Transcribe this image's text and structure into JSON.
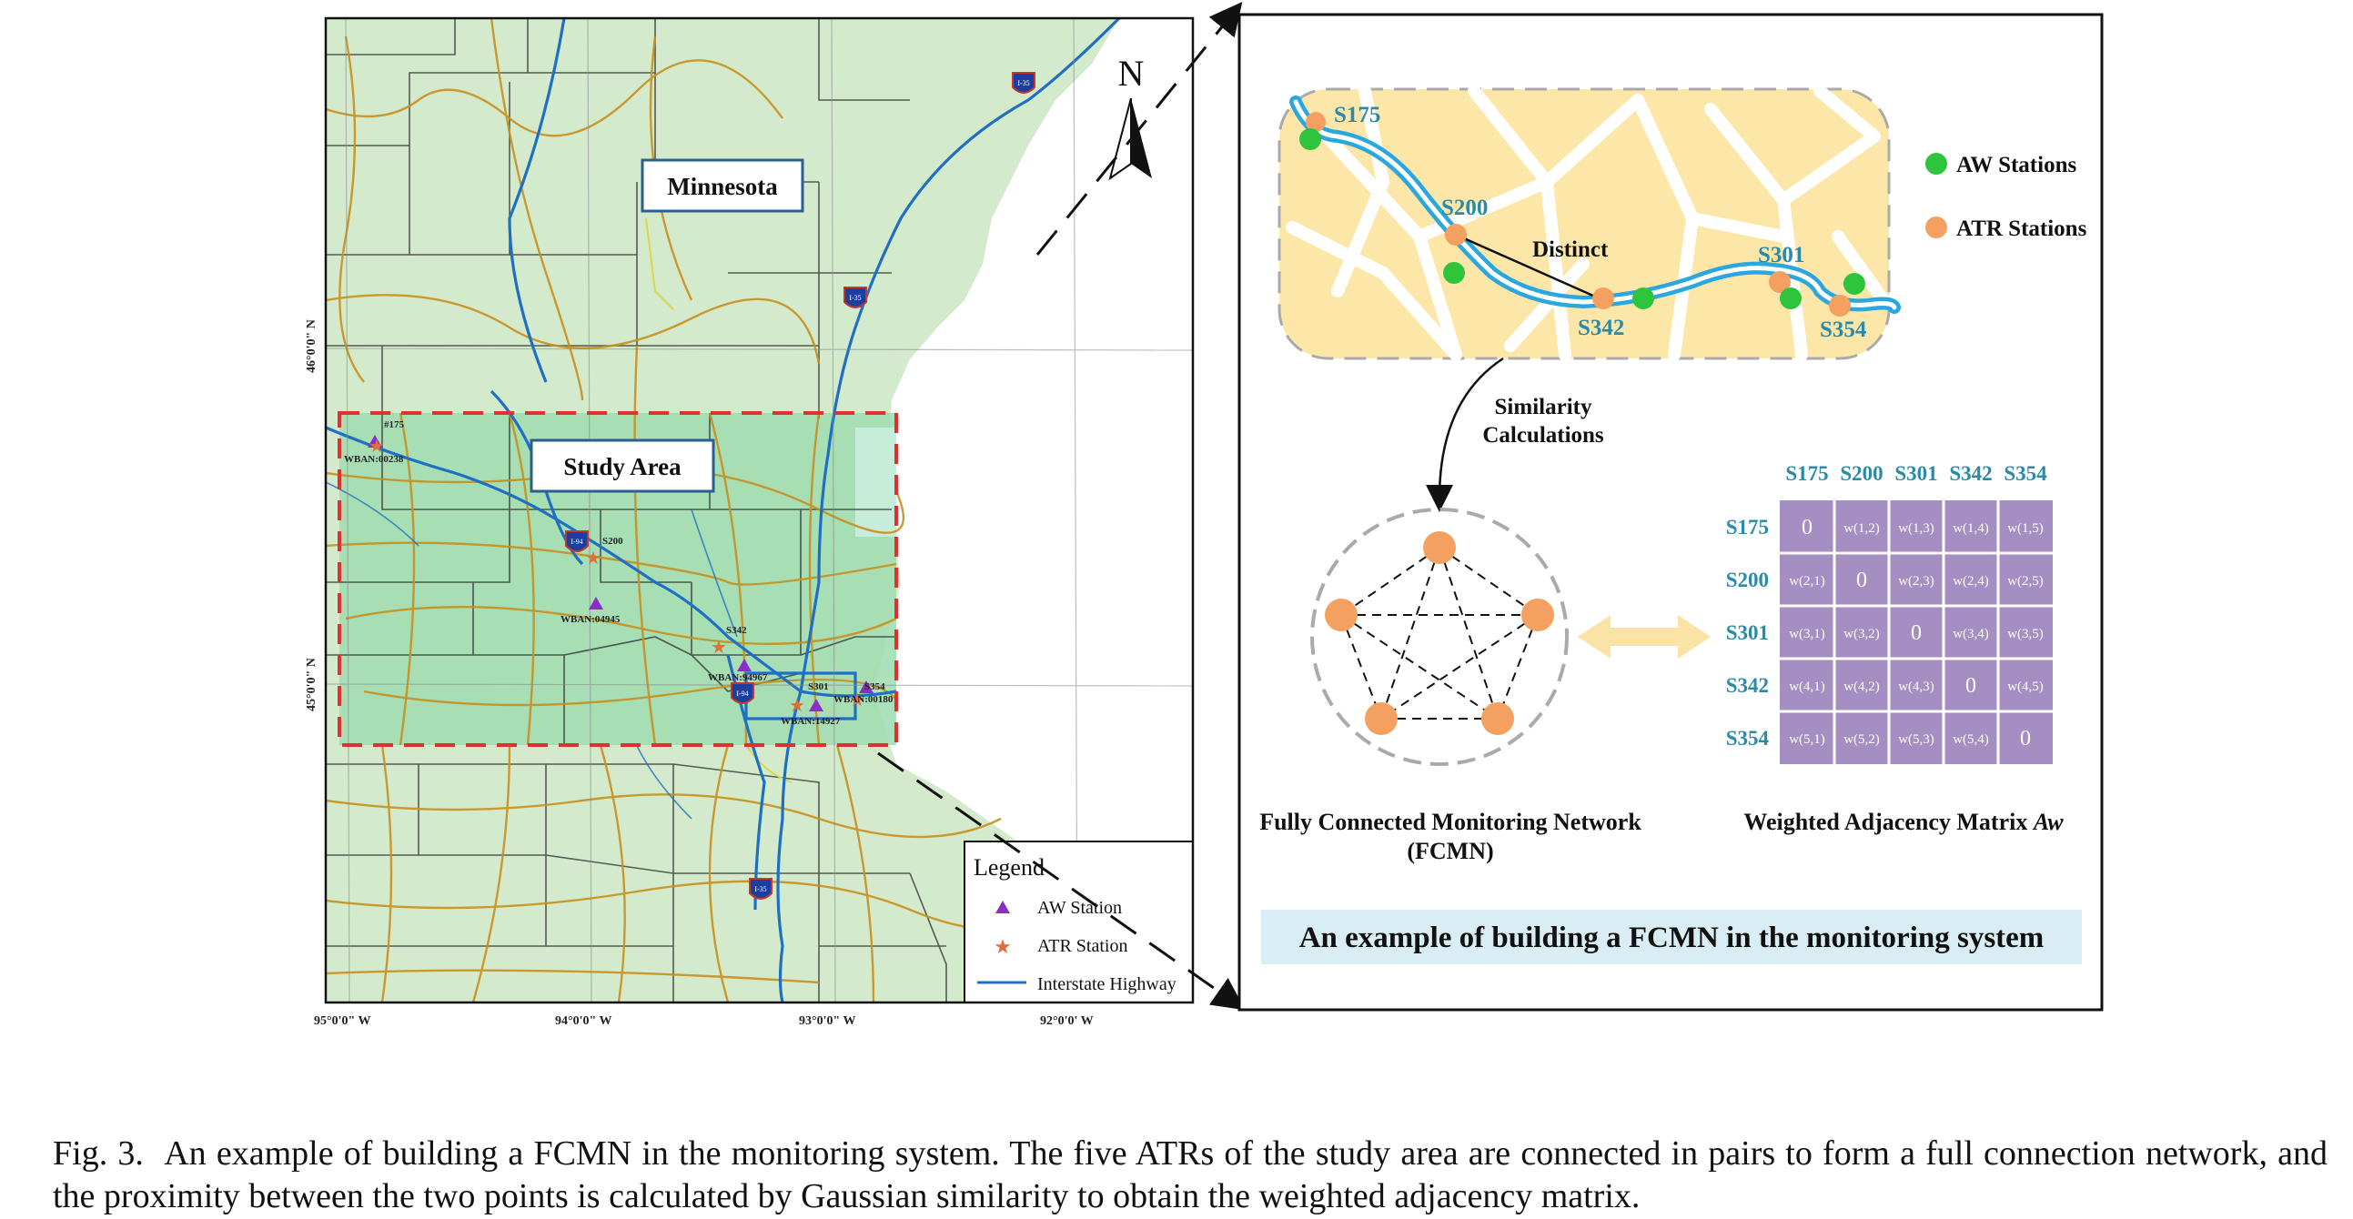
{
  "map": {
    "state_label": "Minnesota",
    "study_area_label": "Study Area",
    "north_label": "N",
    "lat_labels": [
      "46°0'0\" N",
      "45°0'0\" N"
    ],
    "lon_labels": [
      "95°0'0\" W",
      "94°0'0\" W",
      "93°0'0\" W",
      "92°0'0' W"
    ],
    "station_labels": [
      "#175",
      "WBAN:00238",
      "S200",
      "WBAN:04945",
      "S342",
      "WBAN:94967",
      "S301",
      "S354",
      "WBAN:00180",
      "WBAN:14927"
    ],
    "highway_shields": [
      "I-35",
      "I-35",
      "I-94",
      "I-94",
      "I-35"
    ],
    "legend": {
      "title": "Legend",
      "items": [
        "AW Station",
        "ATR Station",
        "Interstate Highway"
      ]
    },
    "colors": {
      "land": "#d3ebcc",
      "study_area": "#9fdcaf",
      "highway": "#1f6fc4",
      "road": "#c8901e",
      "aw_marker": "#8a2fc4",
      "atr_marker": "#e0703a",
      "study_border": "#e03030"
    }
  },
  "diagram": {
    "station_names": [
      "S175",
      "S200",
      "S301",
      "S342",
      "S354"
    ],
    "distinct_label": "Distinct",
    "aw_legend": "AW Stations",
    "atr_legend": "ATR Stations",
    "similarity_label_line1": "Similarity",
    "similarity_label_line2": "Calculations",
    "fcmn_title_line1": "Fully Connected Monitoring Network",
    "fcmn_title_line2": "(FCMN)",
    "matrix_title": "Weighted Adjacency Matrix ",
    "matrix_title_symbol": "Aw",
    "matrix_headers": [
      "S175",
      "S200",
      "S301",
      "S342",
      "S354"
    ],
    "matrix_rows": [
      [
        "0",
        "w(1,2)",
        "w(1,3)",
        "w(1,4)",
        "w(1,5)"
      ],
      [
        "w(2,1)",
        "0",
        "w(2,3)",
        "w(2,4)",
        "w(2,5)"
      ],
      [
        "w(3,1)",
        "w(3,2)",
        "0",
        "w(3,4)",
        "w(3,5)"
      ],
      [
        "w(4,1)",
        "w(4,2)",
        "w(4,3)",
        "0",
        "w(4,5)"
      ],
      [
        "w(5,1)",
        "w(5,2)",
        "w(5,3)",
        "w(5,4)",
        "0"
      ]
    ],
    "banner": "An example of building a FCMN in the monitoring system",
    "colors": {
      "city_fill": "#fde7a8",
      "river": "#2aa7df",
      "aw_green": "#2ec43c",
      "atr_orange": "#f4a060",
      "header_teal": "#2b8aa8",
      "matrix_purple": "#a58ec2",
      "banner_bg": "#d8eef4",
      "arrow_yellow": "#fbe3a6"
    }
  },
  "caption": {
    "label": "Fig. 3.",
    "text": "An example of building a FCMN in the monitoring system. The five ATRs of the study area are connected in pairs to form a full connection network, and the proximity between the two points is calculated by Gaussian similarity to obtain the weighted adjacency matrix."
  }
}
